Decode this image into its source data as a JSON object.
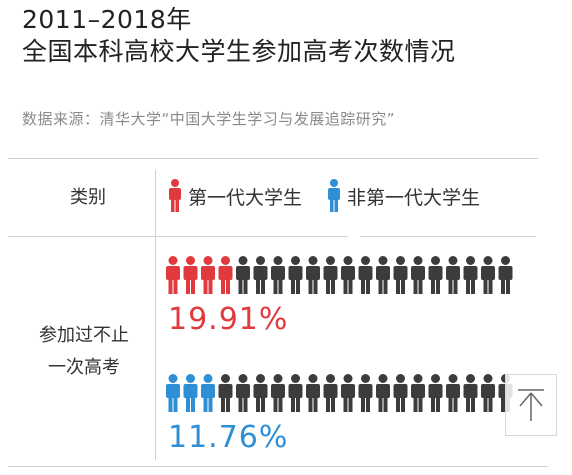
{
  "title": {
    "line1": "2011–2018年",
    "line2": "全国本科高校大学生参加高考次数情况"
  },
  "source": "数据来源：清华大学“中国大学生学习与发展追踪研究”",
  "header": {
    "category_label": "类别",
    "legend": [
      {
        "label": "第一代大学生",
        "color": "#e03a3e"
      },
      {
        "label": "非第一代大学生",
        "color": "#2e8fd6"
      }
    ]
  },
  "row_label": {
    "line1": "参加过不止",
    "line2": "一次高考"
  },
  "colors": {
    "first_gen": "#e03a3e",
    "non_first_gen": "#2e8fd6",
    "other": "#3c3c3c"
  },
  "chart_data": {
    "type": "bar",
    "title": "2011–2018年 全国本科高校大学生参加高考次数情况",
    "categories": [
      "第一代大学生",
      "非第一代大学生"
    ],
    "values": [
      19.91,
      11.76
    ],
    "unit": "%",
    "labels": [
      "19.91%",
      "11.76%"
    ],
    "icons_total": 20,
    "icons_highlighted": [
      4,
      3
    ]
  }
}
